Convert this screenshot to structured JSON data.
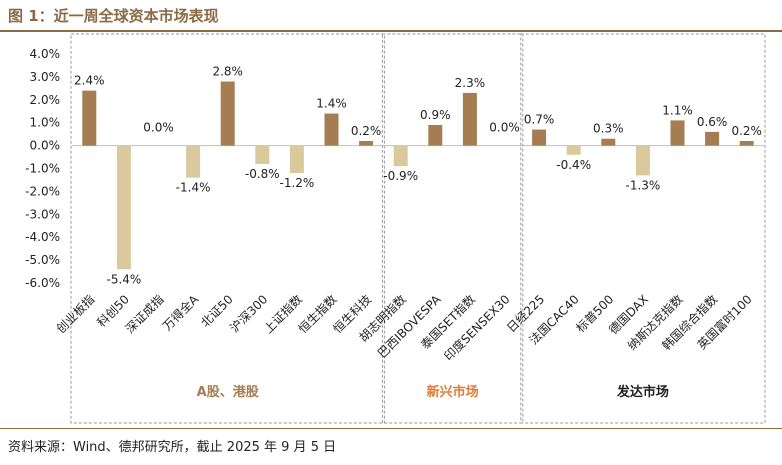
{
  "title": "图 1：近一周全球资本市场表现",
  "source": "资料来源：Wind、德邦研究所，截止 2025 年 9 月 5 日",
  "colors": {
    "positive": "#a67c52",
    "negative": "#d9c99d",
    "title": "#8b6b45",
    "group_a": "#a67c52",
    "group_em": "#e07b39",
    "group_dev": "#222222"
  },
  "chart_data": {
    "type": "bar",
    "ylim": [
      -6,
      4
    ],
    "yticks": [
      "4.0%",
      "3.0%",
      "2.0%",
      "1.0%",
      "0.0%",
      "-1.0%",
      "-2.0%",
      "-3.0%",
      "-4.0%",
      "-5.0%",
      "-6.0%"
    ],
    "ytick_values": [
      4,
      3,
      2,
      1,
      0,
      -1,
      -2,
      -3,
      -4,
      -5,
      -6
    ],
    "categories": [
      "创业板指",
      "科创50",
      "深证成指",
      "万得全A",
      "北证50",
      "沪深300",
      "上证指数",
      "恒生指数",
      "恒生科技",
      "胡志明指数",
      "巴西IBOVESPA",
      "泰国SET指数",
      "印度SENSEX30",
      "日经225",
      "法国CAC40",
      "标普500",
      "德国DAX",
      "纳斯达克指数",
      "韩国综合指数",
      "英国富时100"
    ],
    "values": [
      2.4,
      -5.4,
      0.0,
      -1.4,
      2.8,
      -0.8,
      -1.2,
      1.4,
      0.2,
      -0.9,
      0.9,
      2.3,
      0.0,
      0.7,
      -0.4,
      0.3,
      -1.3,
      1.1,
      0.6,
      0.2
    ],
    "labels": [
      "2.4%",
      "-5.4%",
      "0.0%",
      "-1.4%",
      "2.8%",
      "-0.8%",
      "-1.2%",
      "1.4%",
      "0.2%",
      "-0.9%",
      "0.9%",
      "2.3%",
      "0.0%",
      "0.7%",
      "-0.4%",
      "0.3%",
      "-1.3%",
      "1.1%",
      "0.6%",
      "0.2%"
    ],
    "groups": [
      {
        "name": "A股、港股",
        "start": 0,
        "end": 8
      },
      {
        "name": "新兴市场",
        "start": 9,
        "end": 12
      },
      {
        "name": "发达市场",
        "start": 13,
        "end": 19
      }
    ]
  }
}
